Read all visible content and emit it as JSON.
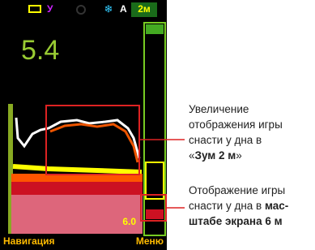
{
  "status": {
    "mode": "У",
    "auto": "А",
    "zoom": "2м"
  },
  "depth": "5.4",
  "scale": "6.0",
  "softkeys": {
    "left": "Навигация",
    "right": "Меню"
  },
  "callouts": [
    {
      "lines": [
        [
          {
            "text": "Увеличение",
            "bold": false
          }
        ],
        [
          {
            "text": "отображения игры",
            "bold": false
          }
        ],
        [
          {
            "text": "снасти у дна в",
            "bold": false
          }
        ],
        [
          {
            "text": "«",
            "bold": false
          },
          {
            "text": "Зум 2 м",
            "bold": true
          },
          {
            "text": "»",
            "bold": false
          }
        ]
      ]
    },
    {
      "lines": [
        [
          {
            "text": "Отображение игры",
            "bold": false
          }
        ],
        [
          {
            "text": "снасти у дна в ",
            "bold": false
          },
          {
            "text": "мас-",
            "bold": true
          }
        ],
        [
          {
            "text": "штабе экрана 6 м",
            "bold": true
          }
        ]
      ]
    }
  ]
}
